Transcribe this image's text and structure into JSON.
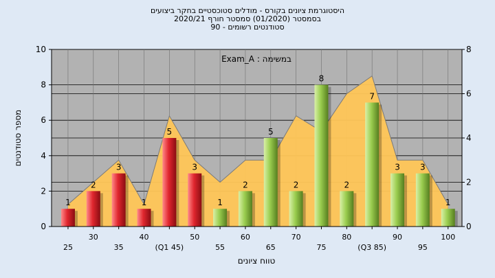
{
  "chart_data": {
    "type": "bar",
    "title_lines": [
      "היסטוגרמת ציונים בקורס - מודלים סטוכסטיים בחקר ביצועים",
      "בסמסטר  (01/2020)  סמסטר חורף  2020/21",
      "סטודנטים רשומים - 90"
    ],
    "annotation": "במשימה : Exam_A",
    "ylabel": "מספר סטודנטים",
    "xlabel": "טווח ציונים",
    "ylim_left": [
      0,
      10
    ],
    "ylim_right": [
      0,
      8
    ],
    "yticks_left": [
      "0",
      "2",
      "4",
      "6",
      "8",
      "10"
    ],
    "yticks_right": [
      "0",
      "2",
      "4",
      "6",
      "8"
    ],
    "grid": true,
    "legend": "none",
    "categories": [
      "25",
      "30",
      "35",
      "40",
      "(Q1 45)",
      "50",
      "55",
      "60",
      "65",
      "70",
      "75",
      "80",
      "(Q3 85)",
      "90",
      "95",
      "100"
    ],
    "values": [
      1,
      2,
      3,
      1,
      5,
      3,
      1,
      2,
      5,
      2,
      8,
      2,
      7,
      3,
      3,
      1
    ],
    "bar_colors": [
      "red",
      "red",
      "red",
      "red",
      "red",
      "red",
      "green",
      "green",
      "green",
      "green",
      "green",
      "green",
      "green",
      "green",
      "green",
      "green"
    ],
    "area_values": [
      1,
      2,
      3,
      1,
      5,
      3,
      2,
      3,
      3,
      5,
      4.3,
      6,
      6.8,
      3,
      3,
      1
    ],
    "colors": {
      "red_bar": "#e0262e",
      "green_bar": "#9acd4f",
      "area": "#ffc657",
      "plot_bg": "#b2b2b2",
      "page_bg": "#dfe9f5"
    }
  }
}
